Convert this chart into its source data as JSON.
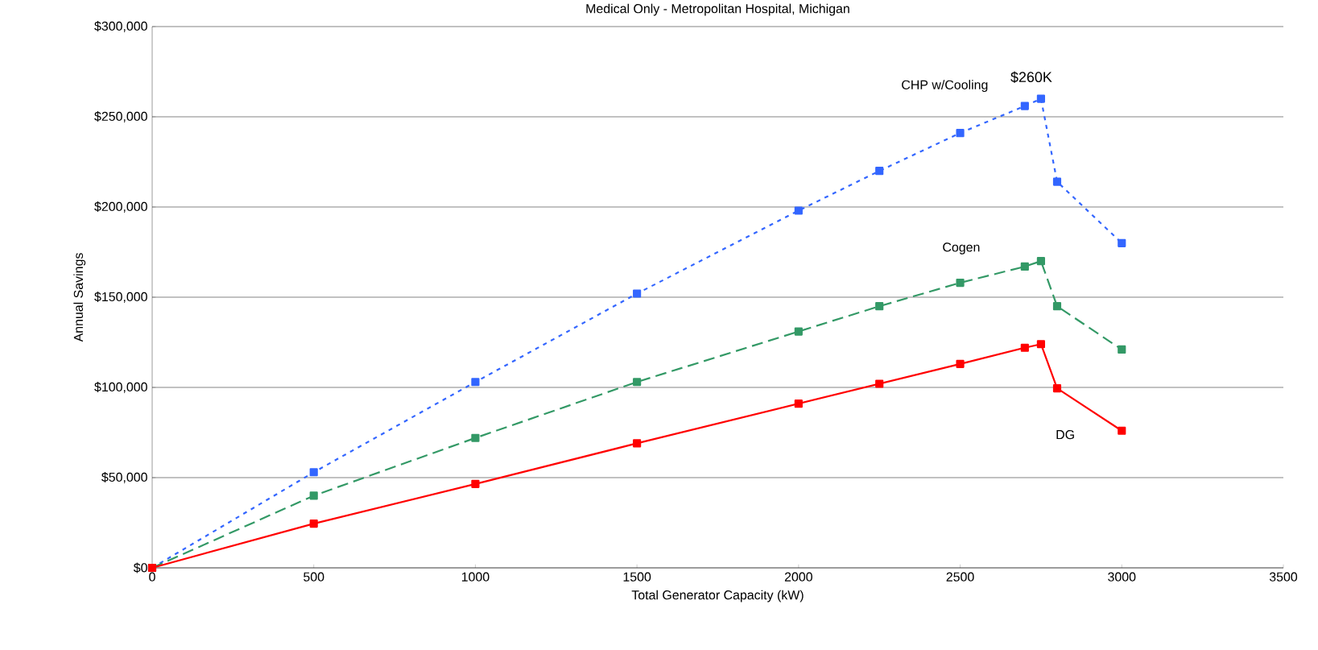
{
  "chart_data": {
    "type": "line",
    "title": "Medical Only - Metropolitan Hospital, Michigan",
    "xlabel": "Total Generator Capacity (kW)",
    "ylabel": "Annual Savings",
    "x": [
      0,
      500,
      1000,
      1500,
      2000,
      2250,
      2500,
      2700,
      2750,
      2800,
      3000
    ],
    "series": [
      {
        "name": "CHP w/Cooling",
        "color": "#3366ff",
        "line_style": "dotted",
        "values": [
          0,
          53000,
          103000,
          152000,
          198000,
          220000,
          241000,
          256000,
          260000,
          214000,
          180000
        ]
      },
      {
        "name": "Cogen",
        "color": "#339966",
        "line_style": "dashed",
        "values": [
          0,
          40000,
          72000,
          103000,
          131000,
          145000,
          158000,
          167000,
          170000,
          145000,
          121000
        ]
      },
      {
        "name": "DG",
        "color": "#ff0000",
        "line_style": "solid",
        "values": [
          0,
          24500,
          46500,
          69000,
          91000,
          102000,
          113000,
          122000,
          124000,
          99500,
          76000
        ]
      }
    ],
    "marker": "square",
    "xlim": [
      0,
      3500
    ],
    "xticks": [
      0,
      500,
      1000,
      1500,
      2000,
      2500,
      3000,
      3500
    ],
    "ylim": [
      0,
      300000
    ],
    "yticks": [
      {
        "value": 0,
        "label": "$0"
      },
      {
        "value": 50000,
        "label": "$50,000"
      },
      {
        "value": 100000,
        "label": "$100,000"
      },
      {
        "value": 150000,
        "label": "$150,000"
      },
      {
        "value": 200000,
        "label": "$200,000"
      },
      {
        "value": 250000,
        "label": "$250,000"
      },
      {
        "value": 300000,
        "label": "$300,000"
      }
    ],
    "grid": "y",
    "annotations": [
      {
        "text": "$260K",
        "x": 2750,
        "y": 260000
      }
    ]
  }
}
